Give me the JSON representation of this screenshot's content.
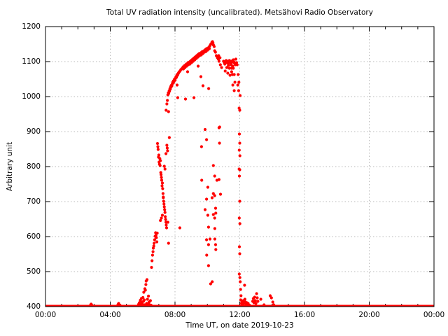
{
  "chart_data": {
    "type": "scatter",
    "title": "Total UV radiation intensity (uncalibrated). Metsähovi Radio Observatory",
    "xlabel": "Time UT, on date 2019-10-23",
    "ylabel": "Arbitrary unit",
    "xlim": [
      0,
      24
    ],
    "ylim": [
      400,
      1200
    ],
    "x_ticks": [
      {
        "h": 0,
        "label": "00:00"
      },
      {
        "h": 4,
        "label": "04:00"
      },
      {
        "h": 8,
        "label": "08:00"
      },
      {
        "h": 12,
        "label": "12:00"
      },
      {
        "h": 16,
        "label": "16:00"
      },
      {
        "h": 20,
        "label": "20:00"
      },
      {
        "h": 24,
        "label": "00:00"
      }
    ],
    "x_minor_step_hours": 1,
    "y_ticks": [
      400,
      500,
      600,
      700,
      800,
      900,
      1000,
      1100,
      1200
    ],
    "grid": true,
    "legend_position": "none",
    "colors": {
      "marker": "#ff0000",
      "baseline": "#ff0000",
      "grid": "#b8b8b8",
      "axis": "#000000",
      "background": "#ffffff"
    },
    "baseline": {
      "value": 400,
      "x_start": 0,
      "x_end": 24
    },
    "points": [
      [
        2.78,
        404
      ],
      [
        2.82,
        407
      ],
      [
        2.86,
        404
      ],
      [
        4.48,
        406
      ],
      [
        4.52,
        409
      ],
      [
        4.56,
        405
      ],
      [
        4.6,
        404
      ],
      [
        5.72,
        403
      ],
      [
        5.76,
        407
      ],
      [
        5.8,
        411
      ],
      [
        5.84,
        405
      ],
      [
        5.86,
        418
      ],
      [
        5.9,
        408
      ],
      [
        5.92,
        423
      ],
      [
        5.96,
        413
      ],
      [
        6.0,
        406
      ],
      [
        6.02,
        426
      ],
      [
        6.05,
        415
      ],
      [
        6.07,
        441
      ],
      [
        6.1,
        419
      ],
      [
        6.12,
        405
      ],
      [
        6.14,
        451
      ],
      [
        6.17,
        447
      ],
      [
        6.2,
        463
      ],
      [
        6.22,
        473
      ],
      [
        6.25,
        409
      ],
      [
        6.27,
        477
      ],
      [
        6.3,
        421
      ],
      [
        6.33,
        407
      ],
      [
        6.36,
        430
      ],
      [
        6.4,
        413
      ],
      [
        6.44,
        405
      ],
      [
        6.48,
        417
      ],
      [
        6.52,
        404
      ],
      [
        6.55,
        512
      ],
      [
        6.58,
        531
      ],
      [
        6.61,
        547
      ],
      [
        6.64,
        557
      ],
      [
        6.66,
        567
      ],
      [
        6.69,
        573
      ],
      [
        6.71,
        581
      ],
      [
        6.74,
        591
      ],
      [
        6.77,
        601
      ],
      [
        6.8,
        611
      ],
      [
        6.82,
        603
      ],
      [
        6.85,
        597
      ],
      [
        6.88,
        585
      ],
      [
        6.9,
        610
      ],
      [
        6.92,
        866
      ],
      [
        6.94,
        857
      ],
      [
        6.96,
        849
      ],
      [
        6.98,
        827
      ],
      [
        7.0,
        833
      ],
      [
        7.02,
        813
      ],
      [
        7.04,
        807
      ],
      [
        7.06,
        823
      ],
      [
        7.08,
        803
      ],
      [
        7.1,
        817
      ],
      [
        7.12,
        783
      ],
      [
        7.14,
        777
      ],
      [
        7.16,
        769
      ],
      [
        7.18,
        761
      ],
      [
        7.2,
        745
      ],
      [
        7.22,
        753
      ],
      [
        7.24,
        737
      ],
      [
        7.26,
        723
      ],
      [
        7.28,
        713
      ],
      [
        7.3,
        701
      ],
      [
        7.32,
        693
      ],
      [
        7.34,
        685
      ],
      [
        7.36,
        677
      ],
      [
        7.38,
        669
      ],
      [
        7.4,
        657
      ],
      [
        7.42,
        649
      ],
      [
        7.44,
        641
      ],
      [
        7.46,
        633
      ],
      [
        7.48,
        625
      ],
      [
        7.5,
        861
      ],
      [
        7.52,
        853
      ],
      [
        7.54,
        845
      ],
      [
        7.44,
        837
      ],
      [
        7.34,
        801
      ],
      [
        7.38,
        793
      ],
      [
        7.28,
        711
      ],
      [
        7.22,
        661
      ],
      [
        7.16,
        653
      ],
      [
        7.1,
        646
      ],
      [
        7.65,
        883
      ],
      [
        7.6,
        581
      ],
      [
        7.56,
        641
      ],
      [
        7.45,
        961
      ],
      [
        7.5,
        979
      ],
      [
        7.53,
        989
      ],
      [
        7.6,
        957
      ],
      [
        7.56,
        1005
      ],
      [
        7.59,
        1011
      ],
      [
        7.61,
        1009
      ],
      [
        7.64,
        1017
      ],
      [
        7.66,
        1015
      ],
      [
        7.69,
        1023
      ],
      [
        7.71,
        1021
      ],
      [
        7.74,
        1029
      ],
      [
        7.76,
        1027
      ],
      [
        7.79,
        1033
      ],
      [
        7.81,
        1031
      ],
      [
        7.84,
        1037
      ],
      [
        7.86,
        1041
      ],
      [
        7.89,
        1039
      ],
      [
        7.91,
        1045
      ],
      [
        7.94,
        1043
      ],
      [
        7.96,
        1049
      ],
      [
        7.99,
        1051
      ],
      [
        8.01,
        1047
      ],
      [
        8.04,
        1053
      ],
      [
        8.06,
        1057
      ],
      [
        8.09,
        1055
      ],
      [
        8.11,
        1059
      ],
      [
        8.14,
        1063
      ],
      [
        8.16,
        1061
      ],
      [
        8.19,
        1065
      ],
      [
        8.21,
        1067
      ],
      [
        8.24,
        1069
      ],
      [
        8.27,
        1071
      ],
      [
        8.31,
        1073
      ],
      [
        8.36,
        1077
      ],
      [
        8.41,
        1079
      ],
      [
        8.13,
        1033
      ],
      [
        8.17,
        997
      ],
      [
        8.65,
        993
      ],
      [
        9.17,
        997
      ],
      [
        8.78,
        1071
      ],
      [
        9.43,
        1087
      ],
      [
        9.6,
        1057
      ],
      [
        9.73,
        1031
      ],
      [
        10.08,
        1023
      ],
      [
        8.3,
        625
      ],
      [
        8.45,
        1081
      ],
      [
        8.5,
        1085
      ],
      [
        8.55,
        1083
      ],
      [
        8.6,
        1089
      ],
      [
        8.65,
        1087
      ],
      [
        8.7,
        1093
      ],
      [
        8.75,
        1091
      ],
      [
        8.8,
        1097
      ],
      [
        8.85,
        1095
      ],
      [
        8.9,
        1099
      ],
      [
        8.95,
        1101
      ],
      [
        9.0,
        1103
      ],
      [
        9.05,
        1105
      ],
      [
        9.1,
        1107
      ],
      [
        9.15,
        1109
      ],
      [
        9.2,
        1111
      ],
      [
        9.25,
        1113
      ],
      [
        9.3,
        1115
      ],
      [
        9.35,
        1117
      ],
      [
        9.4,
        1119
      ],
      [
        9.45,
        1121
      ],
      [
        9.5,
        1123
      ],
      [
        9.55,
        1121
      ],
      [
        9.6,
        1125
      ],
      [
        9.65,
        1127
      ],
      [
        9.7,
        1129
      ],
      [
        9.75,
        1127
      ],
      [
        9.8,
        1131
      ],
      [
        9.85,
        1133
      ],
      [
        9.9,
        1135
      ],
      [
        9.95,
        1137
      ],
      [
        10.0,
        1135
      ],
      [
        10.05,
        1139
      ],
      [
        10.1,
        1141
      ],
      [
        10.15,
        1145
      ],
      [
        10.2,
        1149
      ],
      [
        10.25,
        1151
      ],
      [
        10.28,
        1155
      ],
      [
        10.32,
        1157
      ],
      [
        10.35,
        1153
      ],
      [
        10.38,
        1147
      ],
      [
        10.42,
        1143
      ],
      [
        8.52,
        1079
      ],
      [
        8.72,
        1087
      ],
      [
        8.92,
        1093
      ],
      [
        9.12,
        1101
      ],
      [
        9.32,
        1109
      ],
      [
        9.52,
        1117
      ],
      [
        9.72,
        1123
      ],
      [
        9.92,
        1129
      ],
      [
        10.12,
        1137
      ],
      [
        8.62,
        1083
      ],
      [
        8.82,
        1091
      ],
      [
        9.02,
        1097
      ],
      [
        9.22,
        1105
      ],
      [
        9.42,
        1113
      ],
      [
        9.62,
        1119
      ],
      [
        9.82,
        1127
      ],
      [
        10.02,
        1133
      ],
      [
        9.86,
        906
      ],
      [
        9.64,
        857
      ],
      [
        9.95,
        877
      ],
      [
        10.72,
        911
      ],
      [
        10.76,
        913
      ],
      [
        10.75,
        867
      ],
      [
        10.37,
        803
      ],
      [
        10.45,
        773
      ],
      [
        9.65,
        761
      ],
      [
        10.03,
        741
      ],
      [
        10.59,
        761
      ],
      [
        10.72,
        763
      ],
      [
        10.37,
        723
      ],
      [
        10.81,
        721
      ],
      [
        10.45,
        717
      ],
      [
        9.95,
        707
      ],
      [
        10.29,
        711
      ],
      [
        9.86,
        677
      ],
      [
        10.51,
        681
      ],
      [
        10.03,
        661
      ],
      [
        10.37,
        663
      ],
      [
        10.52,
        667
      ],
      [
        10.45,
        653
      ],
      [
        10.07,
        627
      ],
      [
        10.46,
        623
      ],
      [
        9.95,
        591
      ],
      [
        10.16,
        593
      ],
      [
        10.46,
        593
      ],
      [
        10.07,
        577
      ],
      [
        10.51,
        577
      ],
      [
        9.96,
        547
      ],
      [
        10.52,
        563
      ],
      [
        10.07,
        517
      ],
      [
        10.3,
        471
      ],
      [
        10.2,
        465
      ],
      [
        10.45,
        1131
      ],
      [
        10.5,
        1127
      ],
      [
        10.55,
        1117
      ],
      [
        10.62,
        1111
      ],
      [
        10.68,
        1107
      ],
      [
        10.72,
        1101
      ],
      [
        10.8,
        1091
      ],
      [
        10.88,
        1083
      ],
      [
        10.7,
        1117
      ],
      [
        10.78,
        1111
      ],
      [
        11.0,
        1101
      ],
      [
        11.05,
        1097
      ],
      [
        11.08,
        1093
      ],
      [
        11.12,
        1099
      ],
      [
        11.16,
        1103
      ],
      [
        11.2,
        1097
      ],
      [
        11.24,
        1101
      ],
      [
        11.28,
        1095
      ],
      [
        11.32,
        1099
      ],
      [
        11.36,
        1103
      ],
      [
        11.4,
        1097
      ],
      [
        11.44,
        1101
      ],
      [
        11.48,
        1095
      ],
      [
        11.52,
        1099
      ],
      [
        11.56,
        1103
      ],
      [
        11.6,
        1105
      ],
      [
        11.64,
        1099
      ],
      [
        11.68,
        1095
      ],
      [
        11.72,
        1091
      ],
      [
        11.76,
        1107
      ],
      [
        11.46,
        1091
      ],
      [
        11.3,
        1089
      ],
      [
        11.56,
        1087
      ],
      [
        11.2,
        1083
      ],
      [
        11.36,
        1081
      ],
      [
        11.6,
        1081
      ],
      [
        11.1,
        1073
      ],
      [
        11.5,
        1071
      ],
      [
        11.26,
        1067
      ],
      [
        11.66,
        1063
      ],
      [
        11.4,
        1061
      ],
      [
        11.8,
        1097
      ],
      [
        11.84,
        1091
      ],
      [
        11.5,
        1081
      ],
      [
        11.55,
        1063
      ],
      [
        11.7,
        1041
      ],
      [
        11.57,
        1033
      ],
      [
        11.66,
        1017
      ],
      [
        11.9,
        1063
      ],
      [
        11.95,
        1041
      ],
      [
        11.88,
        1033
      ],
      [
        11.93,
        1017
      ],
      [
        12.02,
        1003
      ],
      [
        11.96,
        967
      ],
      [
        12.0,
        961
      ],
      [
        11.98,
        893
      ],
      [
        12.0,
        867
      ],
      [
        11.97,
        847
      ],
      [
        12.01,
        831
      ],
      [
        11.96,
        793
      ],
      [
        12.0,
        791
      ],
      [
        11.98,
        773
      ],
      [
        12.0,
        701
      ],
      [
        11.97,
        653
      ],
      [
        12.01,
        637
      ],
      [
        11.98,
        571
      ],
      [
        12.0,
        551
      ],
      [
        11.97,
        493
      ],
      [
        12.01,
        483
      ],
      [
        12.03,
        471
      ],
      [
        12.05,
        449
      ],
      [
        12.08,
        431
      ],
      [
        12.06,
        419
      ],
      [
        12.1,
        409
      ],
      [
        12.14,
        413
      ],
      [
        12.18,
        405
      ],
      [
        12.22,
        417
      ],
      [
        12.26,
        409
      ],
      [
        12.3,
        461
      ],
      [
        12.32,
        421
      ],
      [
        12.36,
        413
      ],
      [
        12.4,
        407
      ],
      [
        12.44,
        411
      ],
      [
        12.48,
        405
      ],
      [
        12.52,
        409
      ],
      [
        12.6,
        404
      ],
      [
        12.8,
        415
      ],
      [
        12.84,
        423
      ],
      [
        12.88,
        411
      ],
      [
        12.92,
        427
      ],
      [
        12.96,
        417
      ],
      [
        13.0,
        409
      ],
      [
        13.04,
        437
      ],
      [
        13.08,
        425
      ],
      [
        13.12,
        415
      ],
      [
        13.3,
        421
      ],
      [
        13.5,
        405
      ],
      [
        13.88,
        431
      ],
      [
        13.96,
        425
      ],
      [
        14.04,
        413
      ],
      [
        14.1,
        405
      ]
    ]
  }
}
